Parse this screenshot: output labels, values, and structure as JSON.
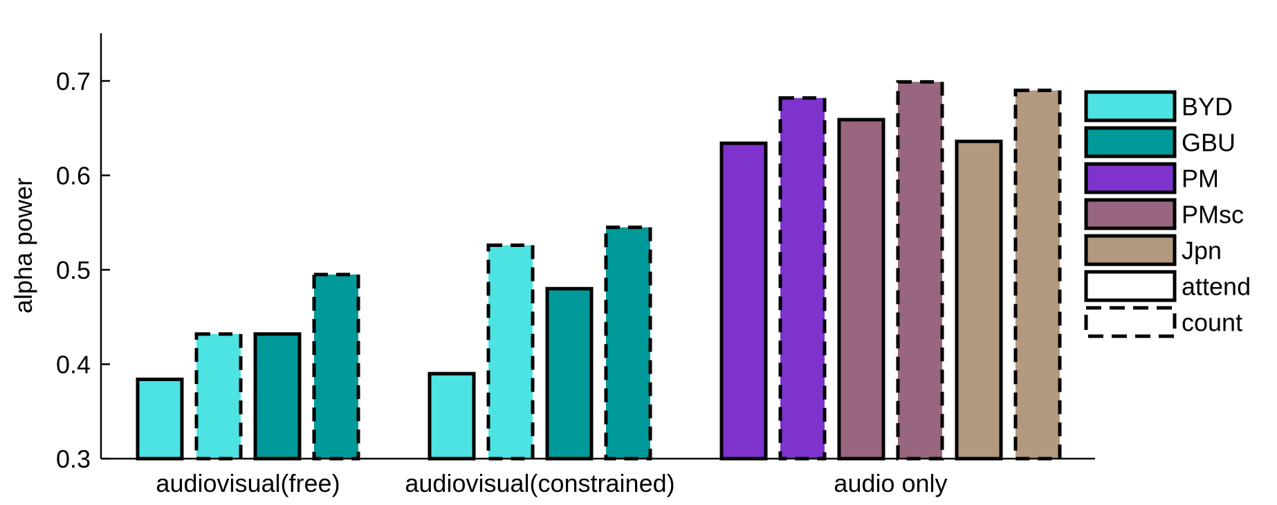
{
  "chart_data": {
    "type": "bar",
    "title": "",
    "xlabel": "",
    "ylabel": "alpha power",
    "ylim": [
      0.3,
      0.75
    ],
    "yticks": [
      0.3,
      0.4,
      0.5,
      0.6,
      0.7
    ],
    "ytick_labels": [
      "0.3",
      "0.4",
      "0.5",
      "0.6",
      "0.7"
    ],
    "grid": false,
    "legend_position": "right",
    "groups": [
      {
        "label": "audiovisual(free)",
        "bars": [
          {
            "stimulus": "BYD",
            "task": "attend",
            "value": 0.384
          },
          {
            "stimulus": "BYD",
            "task": "count",
            "value": 0.432
          },
          {
            "stimulus": "GBU",
            "task": "attend",
            "value": 0.432
          },
          {
            "stimulus": "GBU",
            "task": "count",
            "value": 0.495
          }
        ]
      },
      {
        "label": "audiovisual(constrained)",
        "bars": [
          {
            "stimulus": "BYD",
            "task": "attend",
            "value": 0.39
          },
          {
            "stimulus": "BYD",
            "task": "count",
            "value": 0.526
          },
          {
            "stimulus": "GBU",
            "task": "attend",
            "value": 0.48
          },
          {
            "stimulus": "GBU",
            "task": "count",
            "value": 0.545
          }
        ]
      },
      {
        "label": "audio only",
        "bars": [
          {
            "stimulus": "PM",
            "task": "attend",
            "value": 0.634
          },
          {
            "stimulus": "PM",
            "task": "count",
            "value": 0.682
          },
          {
            "stimulus": "PMsc",
            "task": "attend",
            "value": 0.659
          },
          {
            "stimulus": "PMsc",
            "task": "count",
            "value": 0.699
          },
          {
            "stimulus": "Jpn",
            "task": "attend",
            "value": 0.636
          },
          {
            "stimulus": "Jpn",
            "task": "count",
            "value": 0.69
          }
        ]
      }
    ],
    "legend": [
      {
        "label": "BYD",
        "kind": "color",
        "color": "#4de3e3"
      },
      {
        "label": "GBU",
        "kind": "color",
        "color": "#009999"
      },
      {
        "label": "PM",
        "kind": "color",
        "color": "#7e33cc"
      },
      {
        "label": "PMsc",
        "kind": "color",
        "color": "#99667f"
      },
      {
        "label": "Jpn",
        "kind": "color",
        "color": "#b39980"
      },
      {
        "label": "attend",
        "kind": "solid",
        "color": "#ffffff"
      },
      {
        "label": "count",
        "kind": "dashed",
        "color": "#ffffff"
      }
    ],
    "colors": {
      "BYD": "#4de3e3",
      "GBU": "#009999",
      "PM": "#7e33cc",
      "PMsc": "#99667f",
      "Jpn": "#b39980"
    }
  }
}
